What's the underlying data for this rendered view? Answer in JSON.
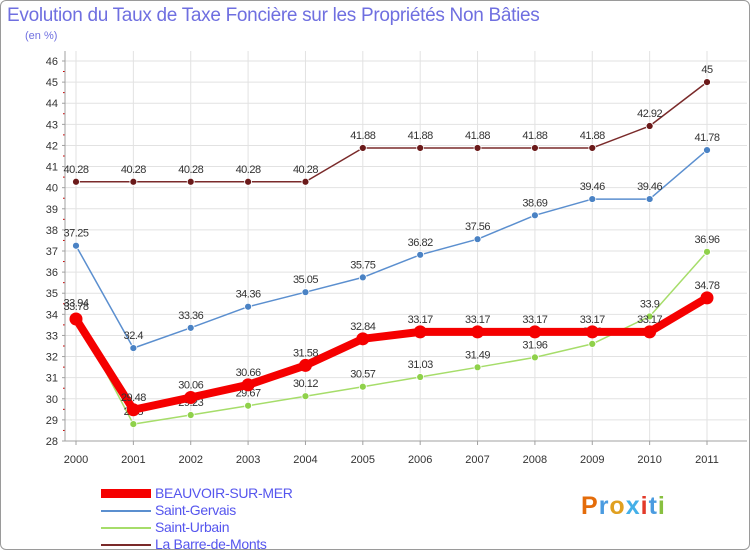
{
  "chart_data": {
    "type": "line",
    "title": "Evolution du Taux de Taxe Foncière sur les Propriétés Non Bâties",
    "unit_label": "(en %)",
    "xlabel": "",
    "ylabel": "",
    "ylim": [
      28,
      46
    ],
    "grid": true,
    "categories": [
      "2000",
      "2001",
      "2002",
      "2003",
      "2004",
      "2005",
      "2006",
      "2007",
      "2008",
      "2009",
      "2010",
      "2011"
    ],
    "y_ticks": [
      "28",
      "29",
      "30",
      "31",
      "32",
      "33",
      "34",
      "35",
      "36",
      "37",
      "38",
      "39",
      "40",
      "41",
      "42",
      "43",
      "44",
      "45",
      "46"
    ],
    "series": [
      {
        "name": "La Barre-de-Monts",
        "color": "#7a2a2a",
        "marker_color": "#6b1a1a",
        "values": [
          40.28,
          40.28,
          40.28,
          40.28,
          40.28,
          41.88,
          41.88,
          41.88,
          41.88,
          41.88,
          42.92,
          45
        ],
        "labels": [
          "40.28",
          "40.28",
          "40.28",
          "40.28",
          "40.28",
          "41.88",
          "41.88",
          "41.88",
          "41.88",
          "41.88",
          "42.92",
          "45"
        ]
      },
      {
        "name": "Saint-Gervais",
        "color": "#5b8fcf",
        "marker_color": "#4a82c4",
        "values": [
          37.25,
          32.4,
          33.36,
          34.36,
          35.05,
          35.75,
          36.82,
          37.56,
          38.69,
          39.46,
          39.46,
          41.78
        ],
        "labels": [
          "37.25",
          "32.4",
          "33.36",
          "34.36",
          "35.05",
          "35.75",
          "36.82",
          "37.56",
          "38.69",
          "39.46",
          "39.46",
          "41.78"
        ]
      },
      {
        "name": "Saint-Urbain",
        "color": "#a6dd6a",
        "marker_color": "#8fd14a",
        "values": [
          33.94,
          28.8,
          29.23,
          29.67,
          30.12,
          30.57,
          31.03,
          31.49,
          31.96,
          32.6,
          33.9,
          36.96
        ],
        "labels": [
          "33.94",
          "28.8",
          "29.23",
          "29.67",
          "30.12",
          "30.57",
          "31.03",
          "31.49",
          "31.96",
          "32.6",
          "33.9",
          "36.96"
        ]
      },
      {
        "name": "BEAUVOIR-SUR-MER",
        "color": "#f50000",
        "marker_color": "#f50000",
        "values": [
          33.78,
          29.48,
          30.06,
          30.66,
          31.58,
          32.84,
          33.17,
          33.17,
          33.17,
          33.17,
          33.17,
          34.78
        ],
        "labels": [
          "33.78",
          "29.48",
          "30.06",
          "30.66",
          "31.58",
          "32.84",
          "33.17",
          "33.17",
          "33.17",
          "33.17",
          "33.17",
          "34.78"
        ]
      }
    ],
    "legend_order": [
      "BEAUVOIR-SUR-MER",
      "Saint-Gervais",
      "Saint-Urbain",
      "La Barre-de-Monts"
    ],
    "legend_position": "bottom-left"
  },
  "logo": {
    "text": "Proxiti",
    "letter_colors": [
      "#e46c0a",
      "#4a9be0",
      "#e0a020",
      "#44b0e8",
      "#e23a2a",
      "#4a9be0",
      "#88c040"
    ]
  }
}
